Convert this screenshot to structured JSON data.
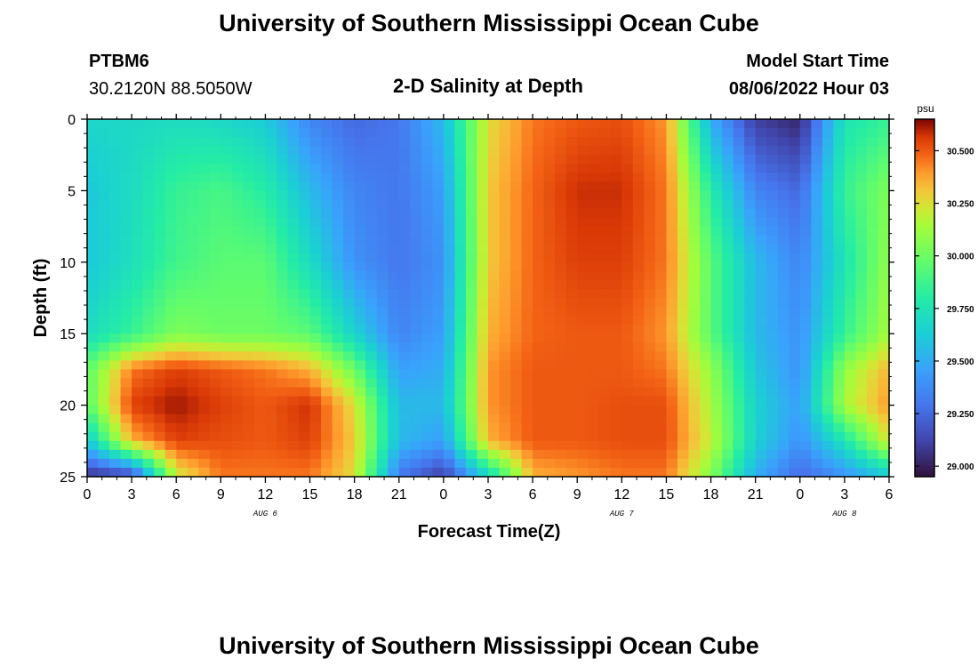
{
  "header": {
    "title": "University of Southern Mississippi Ocean Cube",
    "station": "PTBM6",
    "coords": "30.2120N  88.5050W",
    "subtitle": "2-D Salinity at Depth",
    "model_start_label": "Model Start Time",
    "model_start_value": "08/06/2022 Hour 03",
    "footer_title": "University of Southern Mississippi Ocean Cube"
  },
  "chart_data": {
    "type": "heatmap",
    "title": "2-D Salinity at Depth",
    "xlabel": "Forecast Time(Z)",
    "ylabel": "Depth (ft)",
    "x_tick_labels": [
      "0",
      "3",
      "6",
      "9",
      "12",
      "15",
      "18",
      "21",
      "0",
      "3",
      "6",
      "9",
      "12",
      "15",
      "18",
      "21",
      "0",
      "3",
      "6"
    ],
    "x_tick_hours": [
      0,
      3,
      6,
      9,
      12,
      15,
      18,
      21,
      24,
      27,
      30,
      33,
      36,
      39,
      42,
      45,
      48,
      51,
      54
    ],
    "x_range_hours": [
      0,
      54
    ],
    "date_labels": [
      {
        "label": "AUG 6",
        "hour": 12
      },
      {
        "label": "AUG 7",
        "hour": 36
      },
      {
        "label": "AUG 8",
        "hour": 51
      }
    ],
    "y_ticks": [
      "0",
      "5",
      "10",
      "15",
      "20",
      "25"
    ],
    "y_range": [
      0,
      25
    ],
    "y_inverted": true,
    "colorbar": {
      "unit": "psu",
      "ticks": [
        "30.500",
        "30.250",
        "30.000",
        "29.750",
        "29.500",
        "29.250",
        "29.000"
      ],
      "range": [
        28.95,
        30.65
      ]
    },
    "x_hours": [
      0,
      3,
      6,
      9,
      12,
      15,
      18,
      21,
      24,
      27,
      30,
      33,
      36,
      39,
      42,
      45,
      48,
      51,
      54
    ],
    "depth_levels": [
      0,
      5,
      10,
      15,
      17.5,
      20,
      22.5,
      25
    ],
    "salinity_psu": [
      [
        29.68,
        29.68,
        29.7,
        29.68,
        29.62,
        29.35,
        29.25,
        29.3,
        29.55,
        30.25,
        30.45,
        30.5,
        30.52,
        30.4,
        29.5,
        29.1,
        29.02,
        29.75,
        29.85
      ],
      [
        29.6,
        29.7,
        29.85,
        29.9,
        29.8,
        29.55,
        29.35,
        29.3,
        29.45,
        30.3,
        30.48,
        30.58,
        30.58,
        30.45,
        29.8,
        29.35,
        29.25,
        29.85,
        30.05
      ],
      [
        29.6,
        29.72,
        29.88,
        29.95,
        29.95,
        29.7,
        29.4,
        29.3,
        29.4,
        30.3,
        30.48,
        30.55,
        30.55,
        30.45,
        29.95,
        29.55,
        29.35,
        29.75,
        30.1
      ],
      [
        29.7,
        29.85,
        30.05,
        30.0,
        30.0,
        29.95,
        29.65,
        29.35,
        29.45,
        30.35,
        30.48,
        30.5,
        30.5,
        30.4,
        29.95,
        29.55,
        29.4,
        29.85,
        30.15
      ],
      [
        29.95,
        30.45,
        30.55,
        30.5,
        30.45,
        30.35,
        30.0,
        29.45,
        29.5,
        30.4,
        30.5,
        30.5,
        30.5,
        30.45,
        30.1,
        29.6,
        29.4,
        30.1,
        30.35
      ],
      [
        29.95,
        30.55,
        30.62,
        30.55,
        30.5,
        30.58,
        30.25,
        29.55,
        29.55,
        30.4,
        30.5,
        30.5,
        30.52,
        30.52,
        30.15,
        29.65,
        29.45,
        30.15,
        30.4
      ],
      [
        29.6,
        30.35,
        30.55,
        30.52,
        30.5,
        30.55,
        30.3,
        29.55,
        29.45,
        30.35,
        30.5,
        30.5,
        30.52,
        30.52,
        30.2,
        29.65,
        29.4,
        29.75,
        30.25
      ],
      [
        29.05,
        29.1,
        30.2,
        30.45,
        30.45,
        30.45,
        30.25,
        29.3,
        29.1,
        29.65,
        30.35,
        30.4,
        30.45,
        30.45,
        30.05,
        29.5,
        29.25,
        29.4,
        29.6
      ]
    ]
  }
}
